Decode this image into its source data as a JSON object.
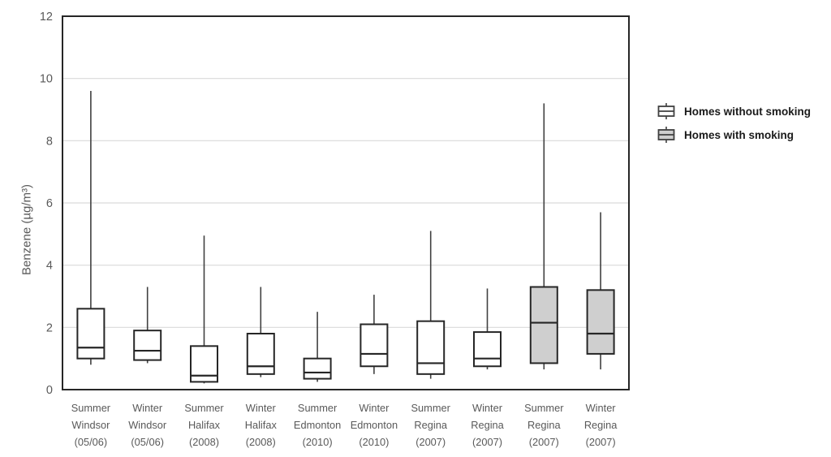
{
  "chart_data": {
    "type": "boxplot",
    "title": "",
    "xlabel": "",
    "ylabel": "Benzene (µg/m³)",
    "ylim": [
      0,
      12
    ],
    "yticks": [
      0,
      2,
      4,
      6,
      8,
      10,
      12
    ],
    "grid": true,
    "legend_position": "right-top",
    "legend": [
      {
        "group": "without",
        "label": "Homes without smoking",
        "fill": "#ffffff"
      },
      {
        "group": "with",
        "label": "Homes with smoking",
        "fill": "#cfcfcf"
      }
    ],
    "categories": [
      "Summer Windsor (05/06)",
      "Winter Windsor (05/06)",
      "Summer Halifax (2008)",
      "Winter Halifax (2008)",
      "Summer Edmonton (2010)",
      "Winter Edmonton (2010)",
      "Summer Regina (2007)",
      "Winter Regina (2007)",
      "Summer Regina (2007)",
      "Winter Regina (2007)"
    ],
    "boxes": [
      {
        "category": "Summer Windsor (05/06)",
        "lines": [
          "Summer",
          "Windsor",
          "(05/06)"
        ],
        "group": "without",
        "whisker_low": 0.8,
        "q1": 1.0,
        "median": 1.35,
        "q3": 2.6,
        "whisker_high": 9.6
      },
      {
        "category": "Winter Windsor (05/06)",
        "lines": [
          "Winter",
          "Windsor",
          "(05/06)"
        ],
        "group": "without",
        "whisker_low": 0.85,
        "q1": 0.95,
        "median": 1.25,
        "q3": 1.9,
        "whisker_high": 3.3
      },
      {
        "category": "Summer Halifax (2008)",
        "lines": [
          "Summer",
          "Halifax",
          "(2008)"
        ],
        "group": "without",
        "whisker_low": 0.2,
        "q1": 0.25,
        "median": 0.45,
        "q3": 1.4,
        "whisker_high": 4.95
      },
      {
        "category": "Winter Halifax (2008)",
        "lines": [
          "Winter",
          "Halifax",
          "(2008)"
        ],
        "group": "without",
        "whisker_low": 0.4,
        "q1": 0.5,
        "median": 0.75,
        "q3": 1.8,
        "whisker_high": 3.3
      },
      {
        "category": "Summer Edmonton (2010)",
        "lines": [
          "Summer",
          "Edmonton",
          "(2010)"
        ],
        "group": "without",
        "whisker_low": 0.25,
        "q1": 0.35,
        "median": 0.55,
        "q3": 1.0,
        "whisker_high": 2.5
      },
      {
        "category": "Winter Edmonton (2010)",
        "lines": [
          "Winter",
          "Edmonton",
          "(2010)"
        ],
        "group": "without",
        "whisker_low": 0.5,
        "q1": 0.75,
        "median": 1.15,
        "q3": 2.1,
        "whisker_high": 3.05
      },
      {
        "category": "Summer Regina (2007)",
        "lines": [
          "Summer",
          "Regina",
          "(2007)"
        ],
        "group": "without",
        "whisker_low": 0.35,
        "q1": 0.5,
        "median": 0.85,
        "q3": 2.2,
        "whisker_high": 5.1
      },
      {
        "category": "Winter Regina (2007)",
        "lines": [
          "Winter",
          "Regina",
          "(2007)"
        ],
        "group": "without",
        "whisker_low": 0.65,
        "q1": 0.75,
        "median": 1.0,
        "q3": 1.85,
        "whisker_high": 3.25
      },
      {
        "category": "Summer Regina (2007)",
        "lines": [
          "Summer",
          "Regina",
          "(2007)"
        ],
        "group": "with",
        "whisker_low": 0.65,
        "q1": 0.85,
        "median": 2.15,
        "q3": 3.3,
        "whisker_high": 9.2
      },
      {
        "category": "Winter Regina (2007)",
        "lines": [
          "Winter",
          "Regina",
          "(2007)"
        ],
        "group": "with",
        "whisker_low": 0.65,
        "q1": 1.15,
        "median": 1.8,
        "q3": 3.2,
        "whisker_high": 5.7
      }
    ],
    "colors": {
      "box_border": "#262626",
      "median_line": "#262626",
      "whisker": "#404040",
      "gridline": "#d9d9d9",
      "frame": "#262626",
      "tick_label": "#595959",
      "fill_without_smoking": "#ffffff",
      "fill_with_smoking": "#cfcfcf",
      "background": "#ffffff"
    }
  }
}
